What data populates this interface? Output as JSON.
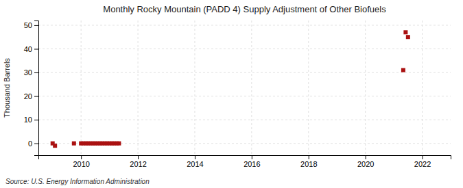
{
  "chart_data": {
    "type": "scatter",
    "title": "Monthly Rocky Mountain (PADD 4) Supply Adjustment of Other Biofuels",
    "ylabel": "Thousand Barrels",
    "source": "Source: U.S. Energy Information Administration",
    "color": "#aa1111",
    "marker": "square",
    "grid": true,
    "xlim": [
      2008.5,
      2023.0
    ],
    "xticks": [
      2010,
      2012,
      2014,
      2016,
      2018,
      2020,
      2022
    ],
    "ylim": [
      -5,
      52
    ],
    "yticks": [
      0,
      10,
      20,
      30,
      40,
      50
    ],
    "x": [
      2009.0,
      2009.083,
      2009.75,
      2010.0,
      2010.083,
      2010.167,
      2010.25,
      2010.333,
      2010.417,
      2010.5,
      2010.583,
      2010.667,
      2010.75,
      2010.833,
      2010.917,
      2011.0,
      2011.083,
      2011.167,
      2011.25,
      2011.333,
      2021.333,
      2021.417,
      2021.5
    ],
    "values": [
      0,
      -1,
      0,
      0,
      0,
      0,
      0,
      0,
      0,
      0,
      0,
      0,
      0,
      0,
      0,
      0,
      0,
      0,
      0,
      0,
      31,
      47,
      45
    ]
  }
}
